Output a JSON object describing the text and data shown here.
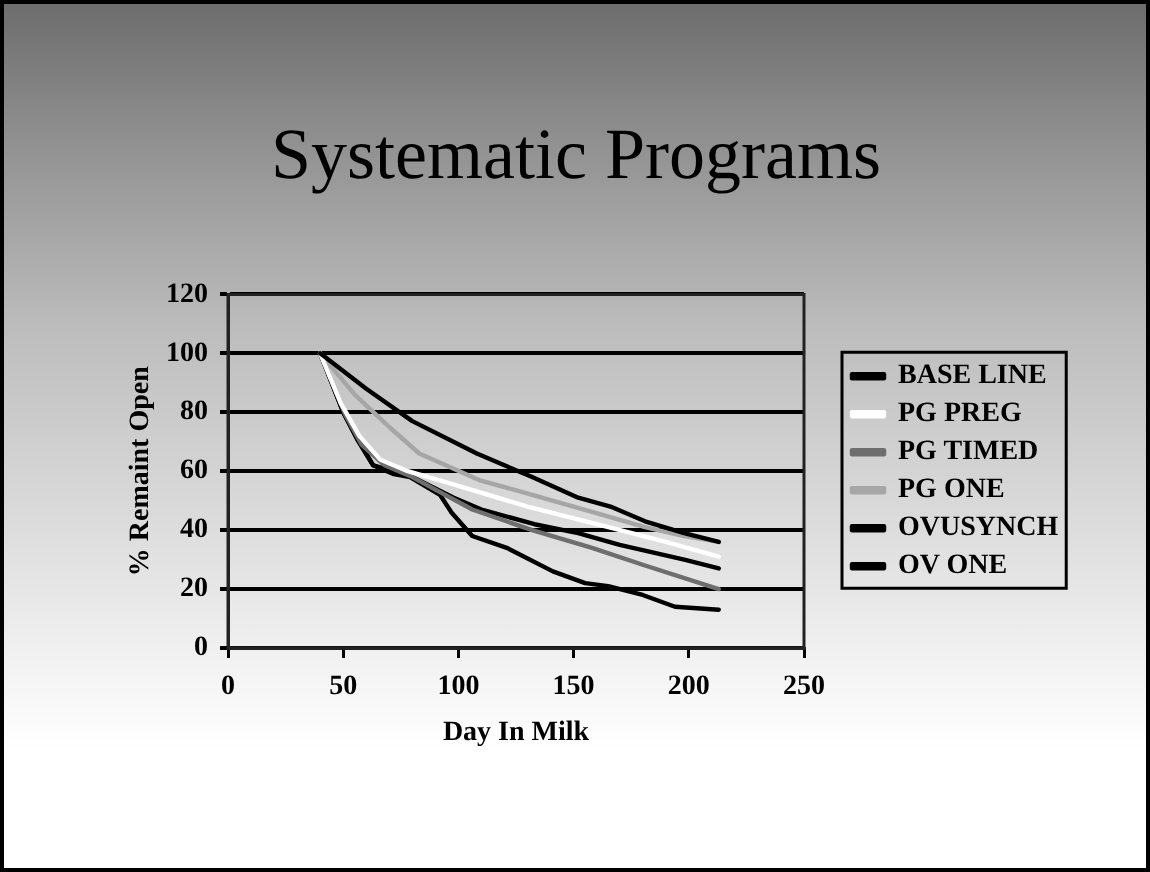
{
  "chart_data": {
    "type": "line",
    "title": "Systematic Programs",
    "xlabel": "Day In Milk",
    "ylabel": "% Remaint Open",
    "xlim": [
      0,
      250
    ],
    "xticks": [
      0,
      50,
      100,
      150,
      200,
      250
    ],
    "ylim": [
      0,
      120
    ],
    "yticks": [
      0,
      20,
      40,
      60,
      80,
      100,
      120
    ],
    "grid": "y",
    "legend": "right",
    "series": [
      {
        "name": "BASE LINE",
        "color": "#000000",
        "x": [
          40,
          60,
          80,
          108,
          132,
          152,
          166,
          181,
          198,
          213
        ],
        "values": [
          100,
          88,
          77,
          66,
          58,
          51,
          48,
          43,
          39,
          36
        ]
      },
      {
        "name": "PG PREG",
        "color": "#ffffff",
        "x": [
          40,
          49,
          57,
          66,
          78,
          100,
          130,
          160,
          190,
          213
        ],
        "values": [
          100,
          83,
          72,
          64,
          60,
          55,
          48,
          42,
          36,
          31
        ]
      },
      {
        "name": "PG TIMED",
        "color": "#6e6e6e",
        "x": [
          40,
          51,
          58,
          68,
          80,
          106,
          132,
          158,
          181,
          213
        ],
        "values": [
          100,
          79,
          69,
          62,
          58,
          47,
          40,
          34,
          28,
          20
        ]
      },
      {
        "name": "PG ONE",
        "color": "#a6a6a6",
        "x": [
          40,
          55,
          70,
          83,
          109,
          132,
          150,
          181,
          198,
          213
        ],
        "values": [
          100,
          86,
          75,
          66,
          57,
          52,
          48,
          41,
          38,
          36
        ]
      },
      {
        "name": "OVUSYNCH",
        "color": "#000000",
        "x": [
          40,
          50,
          56,
          63,
          72,
          80,
          98,
          110,
          133,
          152,
          170,
          198,
          213
        ],
        "values": [
          100,
          80,
          71,
          62,
          60,
          58,
          51,
          47,
          42,
          39,
          35,
          30,
          27
        ]
      },
      {
        "name": "OV ONE",
        "color": "#000000",
        "x": [
          40,
          50,
          56,
          63,
          72,
          79,
          92,
          97,
          106,
          121,
          141,
          155,
          165,
          180,
          194,
          213
        ],
        "values": [
          100,
          80,
          71,
          62,
          59,
          58,
          52,
          46,
          38,
          34,
          26,
          22,
          21,
          18,
          14,
          13
        ]
      }
    ]
  }
}
